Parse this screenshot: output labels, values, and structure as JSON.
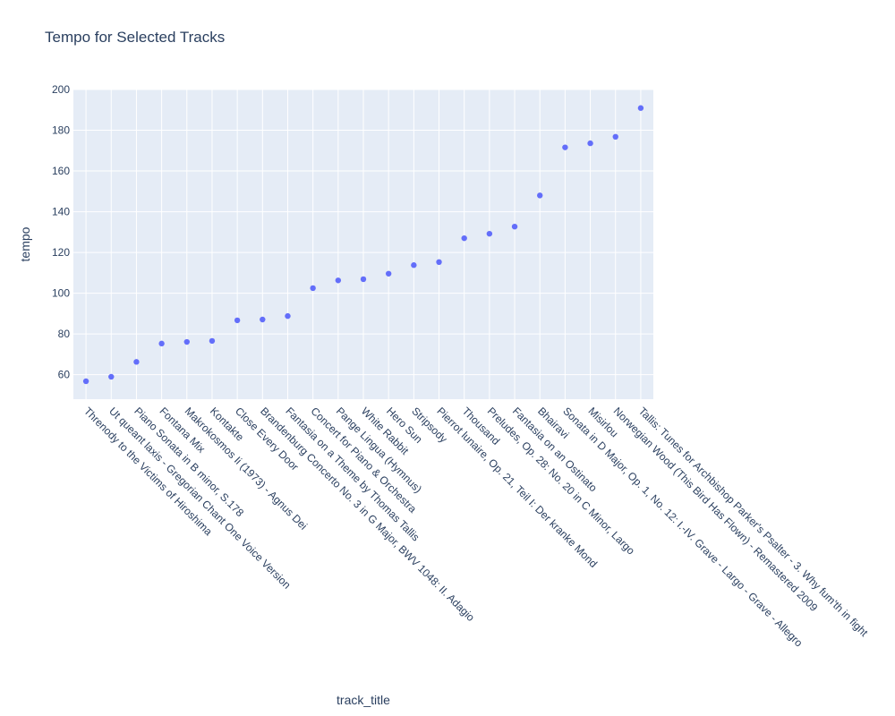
{
  "chart_data": {
    "type": "scatter",
    "title": "Tempo for Selected Tracks",
    "xlabel": "track_title",
    "ylabel": "tempo",
    "ylim": [
      48,
      200
    ],
    "yticks": [
      60,
      80,
      100,
      120,
      140,
      160,
      180,
      200
    ],
    "grid": true,
    "legend": "none",
    "colors": {
      "marker": "#636efa",
      "plot_bg": "#e5ecf6",
      "grid": "#ffffff",
      "text": "#2a3f5f"
    },
    "categories": [
      "Threnody to the Victims of Hiroshima",
      "Ut queant laxis - Gregorian Chant One Voice Version",
      "Piano Sonata in B minor, S.178",
      "Fontana Mix",
      "Makrokosmos Ii (1973) - Agnus Dei",
      "Kontakte",
      "Close Every Door",
      "Brandenburg Concerto No. 3 in G Major, BWV 1048: II. Adagio",
      "Fantasia on a Theme by Thomas Tallis",
      "Concert for Piano & Orchestra",
      "Pange Lingua (Hymnus)",
      "White Rabbit",
      "Hero Sun",
      "Stripsody",
      "Pierrot lunaire, Op. 21, Teil I: Der kranke Mond",
      "Thousand",
      "Preludes, Op. 28: No. 20 in C Minor, Largo",
      "Fantasia on an Ostinato",
      "Bhairavi",
      "Sonata in D Major, Op. 1, No. 12: I.-IV. Grave - Largo - Grave - Allegro",
      "Misirlou",
      "Norwegian Wood (This Bird Has Flown) - Remastered 2009",
      "Tallis: Tunes for Archbishop Parker's Psalter - 3. Why fum'th in fight"
    ],
    "values": [
      56.8,
      59.0,
      66.3,
      75.3,
      76.1,
      76.6,
      86.7,
      87.1,
      88.8,
      102.5,
      106.3,
      106.9,
      109.6,
      113.8,
      115.3,
      127.0,
      129.2,
      132.7,
      148.0,
      171.6,
      173.6,
      176.8,
      190.9
    ]
  }
}
